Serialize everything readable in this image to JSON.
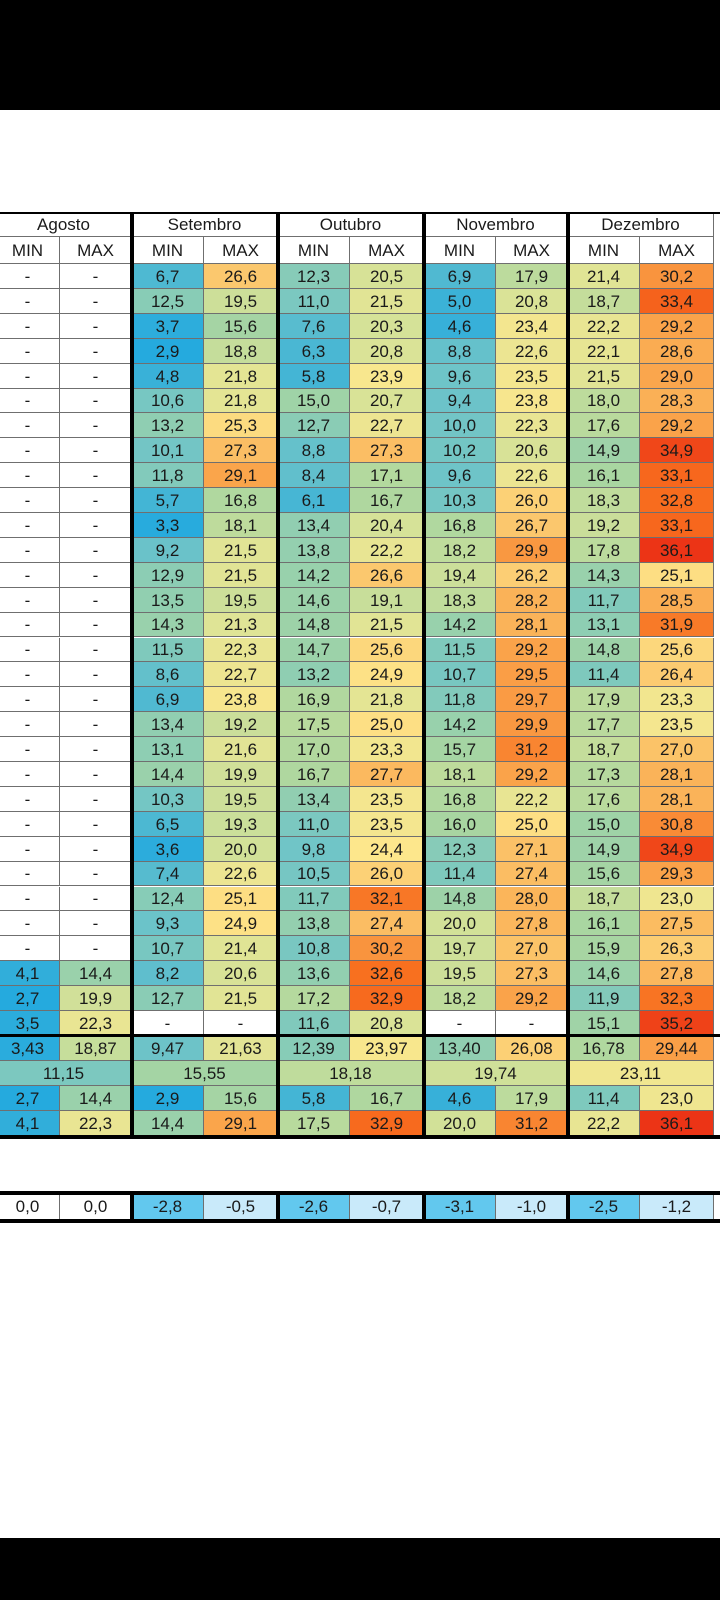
{
  "months": [
    "Agosto",
    "Setembro",
    "Outubro",
    "Novembro",
    "Dezembro"
  ],
  "subheaders": [
    "MIN",
    "MAX"
  ],
  "daily": [
    [
      [
        "-",
        "-"
      ],
      [
        "6,7",
        "26,6"
      ],
      [
        "12,3",
        "20,5"
      ],
      [
        "6,9",
        "17,9"
      ],
      [
        "21,4",
        "30,2"
      ]
    ],
    [
      [
        "-",
        "-"
      ],
      [
        "12,5",
        "19,5"
      ],
      [
        "11,0",
        "21,5"
      ],
      [
        "5,0",
        "20,8"
      ],
      [
        "18,7",
        "33,4"
      ]
    ],
    [
      [
        "-",
        "-"
      ],
      [
        "3,7",
        "15,6"
      ],
      [
        "7,6",
        "20,3"
      ],
      [
        "4,6",
        "23,4"
      ],
      [
        "22,2",
        "29,2"
      ]
    ],
    [
      [
        "-",
        "-"
      ],
      [
        "2,9",
        "18,8"
      ],
      [
        "6,3",
        "20,8"
      ],
      [
        "8,8",
        "22,6"
      ],
      [
        "22,1",
        "28,6"
      ]
    ],
    [
      [
        "-",
        "-"
      ],
      [
        "4,8",
        "21,8"
      ],
      [
        "5,8",
        "23,9"
      ],
      [
        "9,6",
        "23,5"
      ],
      [
        "21,5",
        "29,0"
      ]
    ],
    [
      [
        "-",
        "-"
      ],
      [
        "10,6",
        "21,8"
      ],
      [
        "15,0",
        "20,7"
      ],
      [
        "9,4",
        "23,8"
      ],
      [
        "18,0",
        "28,3"
      ]
    ],
    [
      [
        "-",
        "-"
      ],
      [
        "13,2",
        "25,3"
      ],
      [
        "12,7",
        "22,7"
      ],
      [
        "10,0",
        "22,3"
      ],
      [
        "17,6",
        "29,2"
      ]
    ],
    [
      [
        "-",
        "-"
      ],
      [
        "10,1",
        "27,3"
      ],
      [
        "8,8",
        "27,3"
      ],
      [
        "10,2",
        "20,6"
      ],
      [
        "14,9",
        "34,9"
      ]
    ],
    [
      [
        "-",
        "-"
      ],
      [
        "11,8",
        "29,1"
      ],
      [
        "8,4",
        "17,1"
      ],
      [
        "9,6",
        "22,6"
      ],
      [
        "16,1",
        "33,1"
      ]
    ],
    [
      [
        "-",
        "-"
      ],
      [
        "5,7",
        "16,8"
      ],
      [
        "6,1",
        "16,7"
      ],
      [
        "10,3",
        "26,0"
      ],
      [
        "18,3",
        "32,8"
      ]
    ],
    [
      [
        "-",
        "-"
      ],
      [
        "3,3",
        "18,1"
      ],
      [
        "13,4",
        "20,4"
      ],
      [
        "16,8",
        "26,7"
      ],
      [
        "19,2",
        "33,1"
      ]
    ],
    [
      [
        "-",
        "-"
      ],
      [
        "9,2",
        "21,5"
      ],
      [
        "13,8",
        "22,2"
      ],
      [
        "18,2",
        "29,9"
      ],
      [
        "17,8",
        "36,1"
      ]
    ],
    [
      [
        "-",
        "-"
      ],
      [
        "12,9",
        "21,5"
      ],
      [
        "14,2",
        "26,6"
      ],
      [
        "19,4",
        "26,2"
      ],
      [
        "14,3",
        "25,1"
      ]
    ],
    [
      [
        "-",
        "-"
      ],
      [
        "13,5",
        "19,5"
      ],
      [
        "14,6",
        "19,1"
      ],
      [
        "18,3",
        "28,2"
      ],
      [
        "11,7",
        "28,5"
      ]
    ],
    [
      [
        "-",
        "-"
      ],
      [
        "14,3",
        "21,3"
      ],
      [
        "14,8",
        "21,5"
      ],
      [
        "14,2",
        "28,1"
      ],
      [
        "13,1",
        "31,9"
      ]
    ],
    [
      [
        "-",
        "-"
      ],
      [
        "11,5",
        "22,3"
      ],
      [
        "14,7",
        "25,6"
      ],
      [
        "11,5",
        "29,2"
      ],
      [
        "14,8",
        "25,6"
      ]
    ],
    [
      [
        "-",
        "-"
      ],
      [
        "8,6",
        "22,7"
      ],
      [
        "13,2",
        "24,9"
      ],
      [
        "10,7",
        "29,5"
      ],
      [
        "11,4",
        "26,4"
      ]
    ],
    [
      [
        "-",
        "-"
      ],
      [
        "6,9",
        "23,8"
      ],
      [
        "16,9",
        "21,8"
      ],
      [
        "11,8",
        "29,7"
      ],
      [
        "17,9",
        "23,3"
      ]
    ],
    [
      [
        "-",
        "-"
      ],
      [
        "13,4",
        "19,2"
      ],
      [
        "17,5",
        "25,0"
      ],
      [
        "14,2",
        "29,9"
      ],
      [
        "17,7",
        "23,5"
      ]
    ],
    [
      [
        "-",
        "-"
      ],
      [
        "13,1",
        "21,6"
      ],
      [
        "17,0",
        "23,3"
      ],
      [
        "15,7",
        "31,2"
      ],
      [
        "18,7",
        "27,0"
      ]
    ],
    [
      [
        "-",
        "-"
      ],
      [
        "14,4",
        "19,9"
      ],
      [
        "16,7",
        "27,7"
      ],
      [
        "18,1",
        "29,2"
      ],
      [
        "17,3",
        "28,1"
      ]
    ],
    [
      [
        "-",
        "-"
      ],
      [
        "10,3",
        "19,5"
      ],
      [
        "13,4",
        "23,5"
      ],
      [
        "16,8",
        "22,2"
      ],
      [
        "17,6",
        "28,1"
      ]
    ],
    [
      [
        "-",
        "-"
      ],
      [
        "6,5",
        "19,3"
      ],
      [
        "11,0",
        "23,5"
      ],
      [
        "16,0",
        "25,0"
      ],
      [
        "15,0",
        "30,8"
      ]
    ],
    [
      [
        "-",
        "-"
      ],
      [
        "3,6",
        "20,0"
      ],
      [
        "9,8",
        "24,4"
      ],
      [
        "12,3",
        "27,1"
      ],
      [
        "14,9",
        "34,9"
      ]
    ],
    [
      [
        "-",
        "-"
      ],
      [
        "7,4",
        "22,6"
      ],
      [
        "10,5",
        "26,0"
      ],
      [
        "11,4",
        "27,4"
      ],
      [
        "15,6",
        "29,3"
      ]
    ],
    [
      [
        "-",
        "-"
      ],
      [
        "12,4",
        "25,1"
      ],
      [
        "11,7",
        "32,1"
      ],
      [
        "14,8",
        "28,0"
      ],
      [
        "18,7",
        "23,0"
      ]
    ],
    [
      [
        "-",
        "-"
      ],
      [
        "9,3",
        "24,9"
      ],
      [
        "13,8",
        "27,4"
      ],
      [
        "20,0",
        "27,8"
      ],
      [
        "16,1",
        "27,5"
      ]
    ],
    [
      [
        "-",
        "-"
      ],
      [
        "10,7",
        "21,4"
      ],
      [
        "10,8",
        "30,2"
      ],
      [
        "19,7",
        "27,0"
      ],
      [
        "15,9",
        "26,3"
      ]
    ],
    [
      [
        "4,1",
        "14,4"
      ],
      [
        "8,2",
        "20,6"
      ],
      [
        "13,6",
        "32,6"
      ],
      [
        "19,5",
        "27,3"
      ],
      [
        "14,6",
        "27,8"
      ]
    ],
    [
      [
        "2,7",
        "19,9"
      ],
      [
        "12,7",
        "21,5"
      ],
      [
        "17,2",
        "32,9"
      ],
      [
        "18,2",
        "29,2"
      ],
      [
        "11,9",
        "32,3"
      ]
    ],
    [
      [
        "3,5",
        "22,3"
      ],
      [
        "-",
        "-"
      ],
      [
        "11,6",
        "20,8"
      ],
      [
        "-",
        "-"
      ],
      [
        "15,1",
        "35,2"
      ]
    ]
  ],
  "averages": [
    [
      "3,43",
      "18,87"
    ],
    [
      "9,47",
      "21,63"
    ],
    [
      "12,39",
      "23,97"
    ],
    [
      "13,40",
      "26,08"
    ],
    [
      "16,78",
      "29,44"
    ]
  ],
  "overall": [
    "11,15",
    "15,55",
    "18,18",
    "19,74",
    "23,11"
  ],
  "mins": [
    [
      "2,7",
      "14,4"
    ],
    [
      "2,9",
      "15,6"
    ],
    [
      "5,8",
      "16,7"
    ],
    [
      "4,6",
      "17,9"
    ],
    [
      "11,4",
      "23,0"
    ]
  ],
  "maxs": [
    [
      "4,1",
      "22,3"
    ],
    [
      "14,4",
      "29,1"
    ],
    [
      "17,5",
      "32,9"
    ],
    [
      "20,0",
      "31,2"
    ],
    [
      "22,2",
      "36,1"
    ]
  ],
  "anomaly": [
    [
      "0,0",
      "0,0"
    ],
    [
      "-2,8",
      "-0,5"
    ],
    [
      "-2,6",
      "-0,7"
    ],
    [
      "-3,1",
      "-1,0"
    ],
    [
      "-2,5",
      "-1,2"
    ]
  ],
  "colors": {
    "anomaly_min": "#62c8ee",
    "anomaly_max": "#c9eafa",
    "anomaly_zero": "#ffffff",
    "grid_dark": "#000000",
    "grid_light": "#6f6f6f"
  }
}
